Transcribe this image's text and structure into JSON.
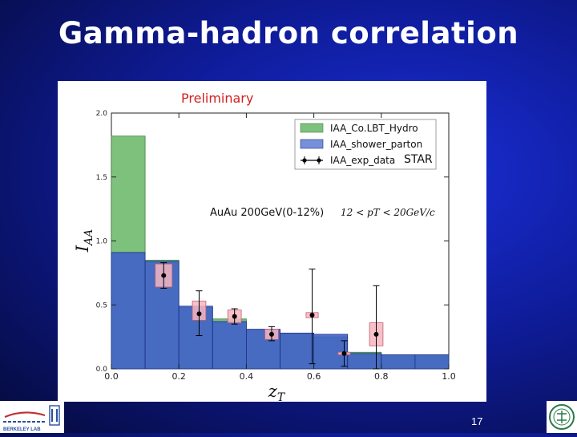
{
  "slide": {
    "title": "Gamma-hadron correlation",
    "page_number": "17",
    "preliminary_label": "Preliminary",
    "logo_left_text": "BERKELEY LAB"
  },
  "chart_data": {
    "type": "bar",
    "ylabel": "I_AA",
    "xlabel": "z_T",
    "xlim": [
      0.0,
      1.0
    ],
    "ylim": [
      0.0,
      2.0
    ],
    "xticks": [
      "0.0",
      "0.2",
      "0.4",
      "0.6",
      "0.8",
      "1.0"
    ],
    "yticks": [
      "0.0",
      "0.5",
      "1.0",
      "1.5",
      "2.0"
    ],
    "annotation_system": "AuAu 200GeV(0-12%)",
    "annotation_pt_range": "12 < pT < 20GeV/c",
    "experiment_label": "STAR",
    "legend_position": "top-right",
    "bin_edges": [
      0.0,
      0.1,
      0.2,
      0.3,
      0.4,
      0.5,
      0.6,
      0.7,
      0.8,
      0.9,
      1.0
    ],
    "series": [
      {
        "name": "IAA_Co.LBT_Hydro",
        "kind": "histogram",
        "color": "#7dc17d",
        "values": [
          1.82,
          0.85,
          0.48,
          0.39,
          0.3,
          0.27,
          0.25,
          0.13,
          0.11,
          0.11
        ]
      },
      {
        "name": "IAA_shower_parton",
        "kind": "histogram",
        "color": "#3f5fc9",
        "values": [
          0.91,
          0.84,
          0.49,
          0.37,
          0.31,
          0.28,
          0.27,
          0.12,
          0.11,
          0.11
        ]
      },
      {
        "name": "IAA_exp_data",
        "kind": "points",
        "color": "#000000",
        "sys_color": "#f7b6c1",
        "points": [
          {
            "x": 0.155,
            "y": 0.73,
            "err_lo": 0.1,
            "err_hi": 0.1,
            "sys_lo": 0.09,
            "sys_hi": 0.09,
            "sys_halfwidth": 0.025
          },
          {
            "x": 0.26,
            "y": 0.43,
            "err_lo": 0.17,
            "err_hi": 0.18,
            "sys_lo": 0.05,
            "sys_hi": 0.1,
            "sys_halfwidth": 0.02
          },
          {
            "x": 0.365,
            "y": 0.41,
            "err_lo": 0.06,
            "err_hi": 0.06,
            "sys_lo": 0.05,
            "sys_hi": 0.05,
            "sys_halfwidth": 0.02
          },
          {
            "x": 0.475,
            "y": 0.27,
            "err_lo": 0.05,
            "err_hi": 0.06,
            "sys_lo": 0.04,
            "sys_hi": 0.04,
            "sys_halfwidth": 0.02
          },
          {
            "x": 0.595,
            "y": 0.42,
            "err_lo": 0.38,
            "err_hi": 0.36,
            "sys_lo": 0.02,
            "sys_hi": 0.02,
            "sys_halfwidth": 0.018
          },
          {
            "x": 0.69,
            "y": 0.12,
            "err_lo": 0.1,
            "err_hi": 0.1,
            "sys_lo": 0.01,
            "sys_hi": 0.01,
            "sys_halfwidth": 0.018
          },
          {
            "x": 0.785,
            "y": 0.27,
            "err_lo": 0.27,
            "err_hi": 0.38,
            "sys_lo": 0.09,
            "sys_hi": 0.09,
            "sys_halfwidth": 0.02
          }
        ]
      }
    ]
  }
}
